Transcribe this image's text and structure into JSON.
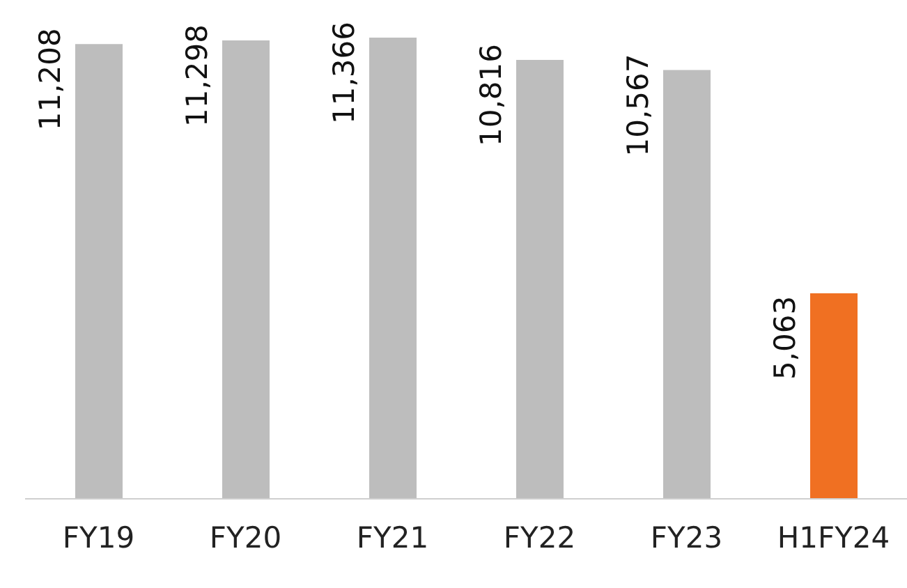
{
  "chart_data": {
    "type": "bar",
    "categories": [
      "FY19",
      "FY20",
      "FY21",
      "FY22",
      "FY23",
      "H1FY24"
    ],
    "values": [
      11208,
      11298,
      11366,
      10816,
      10567,
      5063
    ],
    "colors": [
      "#bdbdbd",
      "#bdbdbd",
      "#bdbdbd",
      "#bdbdbd",
      "#bdbdbd",
      "#f07022"
    ],
    "value_labels": [
      "11,208",
      "11,298",
      "11,366",
      "10,816",
      "10,567",
      "5,063"
    ]
  }
}
